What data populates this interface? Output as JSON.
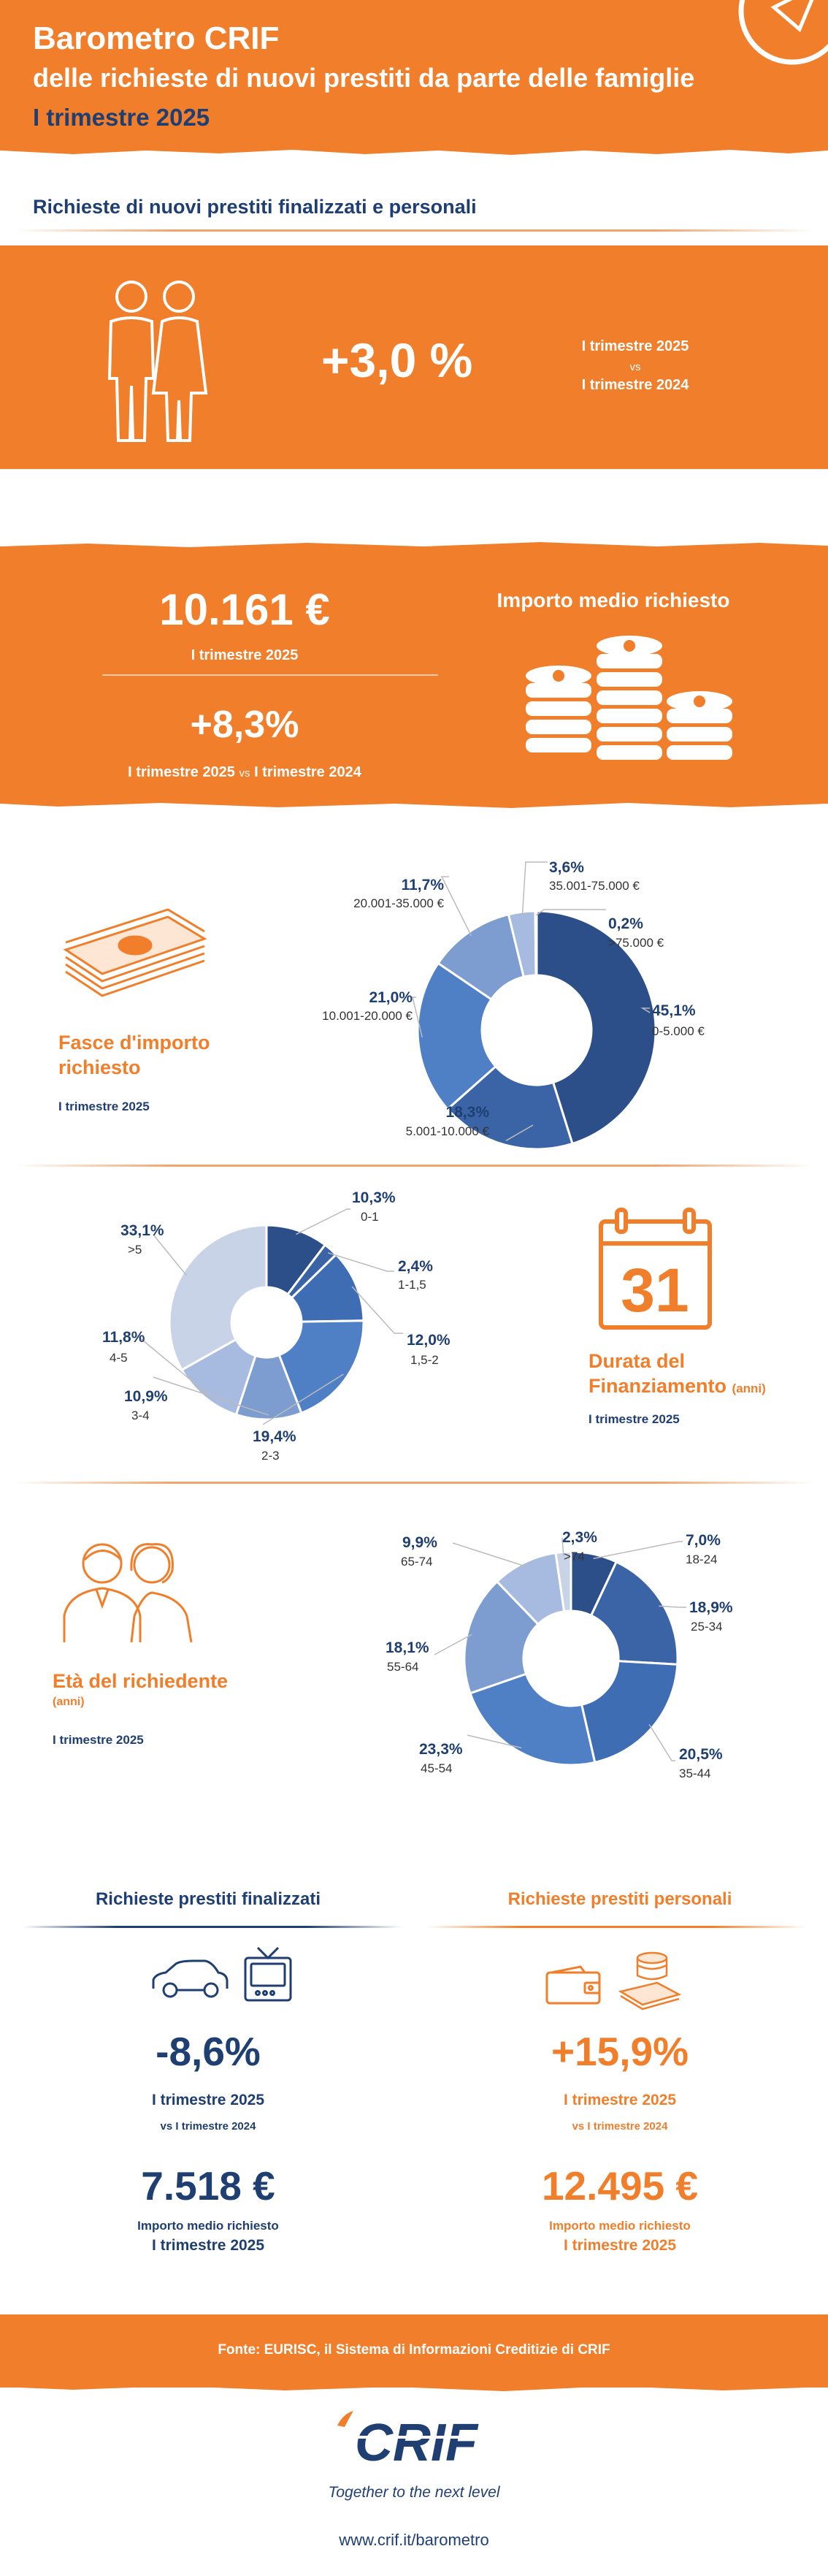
{
  "header": {
    "title": "Barometro CRIF",
    "subtitle": "delle richieste di nuovi prestiti da parte delle famiglie",
    "period": "I trimestre 2025"
  },
  "section1": {
    "heading": "Richieste di nuovi prestiti finalizzati e personali",
    "change": "+3,0 %",
    "compare_line1": "I trimestre 2025",
    "compare_vs": "vs",
    "compare_line2": "I trimestre 2024"
  },
  "section2": {
    "amount": "10.161 €",
    "amount_period": "I trimestre 2025",
    "change": "+8,3%",
    "change_period_a": "I trimestre 2025",
    "change_vs": "vs",
    "change_period_b": "I trimestre 2024",
    "heading": "Importo medio richiesto"
  },
  "chart_data": [
    {
      "type": "pie",
      "title": "Fasce d'importo richiesto",
      "subtitle": "I trimestre 2025",
      "categories": [
        "0-5.000 €",
        "5.001-10.000 €",
        "10.001-20.000 €",
        "20.001-35.000 €",
        "35.001-75.000 €",
        ">75.000 €"
      ],
      "values": [
        45.1,
        18.3,
        21.0,
        11.7,
        3.6,
        0.2
      ],
      "value_labels": [
        "45,1%",
        "18,3%",
        "21,0%",
        "11,7%",
        "3,6%",
        "0,2%"
      ],
      "colors": [
        "#2c4f8a",
        "#3a64a6",
        "#4f7fc4",
        "#7d9ccf",
        "#a7badf",
        "#c8d3e8"
      ]
    },
    {
      "type": "pie",
      "title": "Durata del Finanziamento",
      "title_unit": "(anni)",
      "subtitle": "I trimestre 2025",
      "categories": [
        "0-1",
        "1-1,5",
        "1,5-2",
        "2-3",
        "3-4",
        "4-5",
        ">5"
      ],
      "values": [
        10.3,
        2.4,
        12.0,
        19.4,
        10.9,
        11.8,
        33.1
      ],
      "value_labels": [
        "10,3%",
        "2,4%",
        "12,0%",
        "19,4%",
        "10,9%",
        "11,8%",
        "33,1%"
      ],
      "colors": [
        "#2c4f8a",
        "#3a64a6",
        "#3f6db3",
        "#4f7fc4",
        "#7d9ccf",
        "#a7badf",
        "#c8d3e8"
      ]
    },
    {
      "type": "pie",
      "title": "Età del richiedente",
      "title_unit": "(anni)",
      "subtitle": "I trimestre 2025",
      "categories": [
        "18-24",
        "25-34",
        "35-44",
        "45-54",
        "55-64",
        "65-74",
        ">74"
      ],
      "values": [
        7.0,
        18.9,
        20.5,
        23.3,
        18.1,
        9.9,
        2.3
      ],
      "value_labels": [
        "7,0%",
        "18,9%",
        "20,5%",
        "23,3%",
        "18,1%",
        "9,9%",
        "2,3%"
      ],
      "colors": [
        "#2c4f8a",
        "#3a64a6",
        "#3f6db3",
        "#4f7fc4",
        "#7d9ccf",
        "#a7badf",
        "#c8d3e8"
      ]
    }
  ],
  "finalizzati": {
    "heading": "Richieste prestiti finalizzati",
    "change": "-8,6%",
    "period": "I trimestre 2025",
    "vs_period": "vs I trimestre 2024",
    "amount": "7.518 €",
    "amount_label": "Importo medio richiesto",
    "amount_period": "I trimestre 2025"
  },
  "personali": {
    "heading": "Richieste prestiti personali",
    "change": "+15,9%",
    "period": "I trimestre 2025",
    "vs_period": "vs I trimestre 2024",
    "amount": "12.495 €",
    "amount_label": "Importo medio richiesto",
    "amount_period": "I trimestre 2025"
  },
  "footer": {
    "source": "Fonte: EURISC, il Sistema di Informazioni Creditizie di CRIF",
    "logo_text": "CRIF",
    "tagline": "Together to the next level",
    "url": "www.crif.it/barometro"
  },
  "colors": {
    "orange": "#f07e2a",
    "navy": "#1f3f73",
    "white": "#ffffff"
  }
}
